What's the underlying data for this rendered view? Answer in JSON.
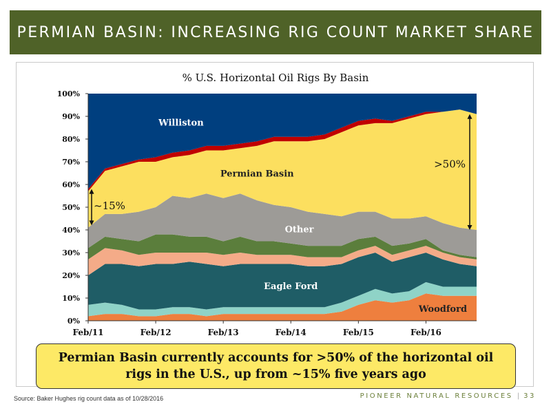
{
  "header": {
    "title": "PERMIAN BASIN: INCREASING RIG COUNT MARKET SHARE"
  },
  "callout": {
    "text": "Permian Basin currently accounts for >50% of the horizontal oil rigs in the U.S., up from ~15% five years ago"
  },
  "footer": {
    "source": "Source: Baker Hughes rig count data as of 10/28/2016",
    "brand": "PIONEER NATURAL RESOURCES",
    "page": "33"
  },
  "colors": {
    "header_bg": "#4f6228",
    "callout_bg": "#fde966",
    "brand_text": "#6b7f3a"
  },
  "chart_data": {
    "type": "area",
    "stacked": true,
    "title": "% U.S. Horizontal Oil Rigs By Basin",
    "xlabel": "",
    "ylabel": "",
    "x_ticks": [
      "Feb/11",
      "Feb/12",
      "Feb/13",
      "Feb/14",
      "Feb/15",
      "Feb/16"
    ],
    "x": [
      "Feb/11",
      "May/11",
      "Aug/11",
      "Nov/11",
      "Feb/12",
      "May/12",
      "Aug/12",
      "Nov/12",
      "Feb/13",
      "May/13",
      "Aug/13",
      "Nov/13",
      "Feb/14",
      "May/14",
      "Aug/14",
      "Nov/14",
      "Feb/15",
      "May/15",
      "Aug/15",
      "Nov/15",
      "Feb/16",
      "May/16",
      "Aug/16",
      "Oct/16"
    ],
    "ylim": [
      0,
      100
    ],
    "y_ticks": [
      "0%",
      "10%",
      "20%",
      "30%",
      "40%",
      "50%",
      "60%",
      "70%",
      "80%",
      "90%",
      "100%"
    ],
    "series": [
      {
        "name": "Woodford",
        "color": "#ee7f3e",
        "values": [
          2,
          3,
          3,
          2,
          2,
          3,
          3,
          2,
          3,
          3,
          3,
          3,
          3,
          3,
          3,
          4,
          7,
          9,
          8,
          9,
          12,
          11,
          11,
          11
        ]
      },
      {
        "name": "",
        "color": "#8fd3c7",
        "values": [
          5,
          5,
          4,
          3,
          3,
          3,
          3,
          3,
          3,
          3,
          3,
          3,
          3,
          3,
          3,
          4,
          4,
          5,
          4,
          4,
          5,
          4,
          4,
          4
        ]
      },
      {
        "name": "Eagle Ford",
        "color": "#1f5d66",
        "values": [
          13,
          17,
          18,
          19,
          20,
          19,
          20,
          20,
          18,
          19,
          19,
          19,
          19,
          18,
          18,
          17,
          17,
          16,
          14,
          15,
          13,
          12,
          10,
          9
        ]
      },
      {
        "name": "",
        "color": "#f4ab88",
        "values": [
          7,
          7,
          6,
          5,
          5,
          5,
          4,
          5,
          5,
          5,
          4,
          4,
          4,
          4,
          4,
          3,
          3,
          3,
          3,
          3,
          3,
          3,
          3,
          3
        ]
      },
      {
        "name": "",
        "color": "#5b7e3c",
        "values": [
          5,
          5,
          5,
          6,
          8,
          8,
          7,
          7,
          6,
          7,
          6,
          6,
          5,
          5,
          5,
          5,
          5,
          4,
          4,
          3,
          3,
          1,
          1,
          1
        ]
      },
      {
        "name": "Other",
        "color": "#9d9b97",
        "values": [
          9,
          10,
          11,
          13,
          12,
          17,
          17,
          19,
          19,
          19,
          18,
          16,
          16,
          15,
          14,
          13,
          12,
          11,
          12,
          11,
          10,
          12,
          12,
          12
        ]
      },
      {
        "name": "Permian Basin",
        "color": "#fcdf5f",
        "values": [
          16,
          19,
          21,
          22,
          20,
          17,
          19,
          19,
          21,
          20,
          24,
          28,
          29,
          31,
          33,
          37,
          38,
          39,
          42,
          44,
          45,
          49,
          52,
          51
        ]
      },
      {
        "name": "",
        "color": "#c00000",
        "values": [
          1,
          1,
          1,
          1,
          2,
          2,
          2,
          2,
          2,
          2,
          2,
          2,
          2,
          2,
          2,
          2,
          2,
          2,
          1,
          1,
          1,
          0,
          0,
          0
        ]
      },
      {
        "name": "Williston",
        "color": "#003f7f",
        "values": [
          42,
          33,
          31,
          29,
          28,
          26,
          25,
          23,
          23,
          22,
          21,
          19,
          19,
          19,
          18,
          15,
          12,
          11,
          12,
          10,
          8,
          8,
          7,
          9
        ]
      }
    ],
    "annotations": [
      {
        "text": "~15%",
        "x": "Feb/11",
        "from": 42,
        "to": 58
      },
      {
        "text": ">50%",
        "x": "Oct/16",
        "from": 40,
        "to": 91
      }
    ]
  }
}
